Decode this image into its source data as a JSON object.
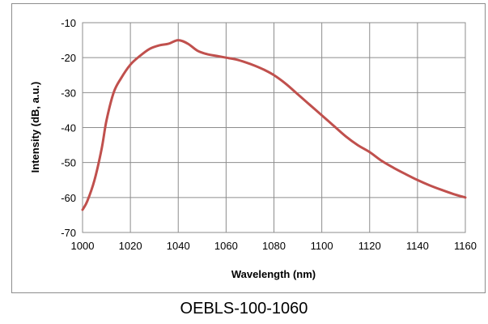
{
  "caption": "OEBLS-100-1060",
  "chart_data": {
    "type": "line",
    "title": "",
    "xlabel": "Wavelength (nm)",
    "ylabel": "Intensity (dB, a.u.)",
    "xlim": [
      1000,
      1160
    ],
    "ylim": [
      -70,
      -10
    ],
    "xticks": [
      "1000",
      "1020",
      "1040",
      "1060",
      "1080",
      "1100",
      "1120",
      "1140",
      "1160"
    ],
    "yticks": [
      "-10",
      "-20",
      "-30",
      "-40",
      "-50",
      "-60",
      "-70"
    ],
    "grid": true,
    "legend": "none",
    "series": [
      {
        "color": "#c0504d",
        "x": [
          1000,
          1002,
          1005,
          1008,
          1010,
          1013,
          1016,
          1020,
          1024,
          1028,
          1032,
          1036,
          1040,
          1044,
          1048,
          1052,
          1056,
          1060,
          1064,
          1068,
          1072,
          1076,
          1080,
          1085,
          1090,
          1095,
          1100,
          1105,
          1110,
          1115,
          1120,
          1125,
          1130,
          1135,
          1140,
          1145,
          1150,
          1155,
          1160
        ],
        "y": [
          -63.5,
          -61,
          -55,
          -46,
          -38,
          -30,
          -26,
          -22,
          -19.5,
          -17.5,
          -16.5,
          -16,
          -15,
          -16,
          -18,
          -19,
          -19.5,
          -20,
          -20.5,
          -21.3,
          -22.3,
          -23.5,
          -25,
          -27.5,
          -30.5,
          -33.5,
          -36.5,
          -39.5,
          -42.5,
          -45,
          -47,
          -49.5,
          -51.5,
          -53.3,
          -55,
          -56.5,
          -57.8,
          -59,
          -60
        ]
      }
    ]
  }
}
